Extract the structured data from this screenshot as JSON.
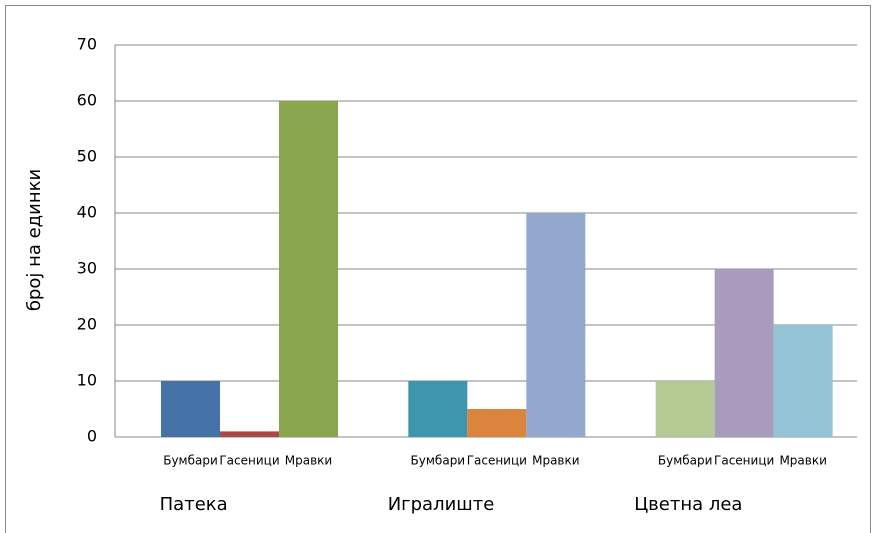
{
  "chart_data": {
    "type": "bar",
    "ylabel": "број на единки",
    "groups": [
      {
        "name": "Патека",
        "categories": [
          "Бумбари",
          "Гасеници",
          "Мравки"
        ],
        "values": [
          10,
          1,
          60
        ],
        "colors": [
          "#4572a7",
          "#aa4643",
          "#89a54e"
        ]
      },
      {
        "name": "Игралиште",
        "categories": [
          "Бумбари",
          "Гасеници",
          "Мравки"
        ],
        "values": [
          10,
          5,
          40
        ],
        "colors": [
          "#3d96ae",
          "#db843d",
          "#92a8cd"
        ]
      },
      {
        "name": "Цветна леа",
        "categories": [
          "Бумбари",
          "Гасеници",
          "Мравки"
        ],
        "values": [
          10,
          30,
          20
        ],
        "colors": [
          "#b5ca92",
          "#a99bbd",
          "#93c4d6"
        ]
      }
    ],
    "ylim": [
      0,
      70
    ],
    "yticks": [
      0,
      10,
      20,
      30,
      40,
      50,
      60,
      70
    ],
    "grid": true
  }
}
